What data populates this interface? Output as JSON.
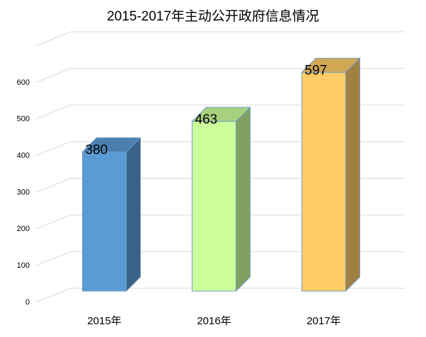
{
  "chart_data": {
    "type": "bar3d",
    "title": "2015-2017年主动公开政府信息情况",
    "categories": [
      "2015年",
      "2016年",
      "2017年"
    ],
    "values": [
      380,
      463,
      597
    ],
    "colors": [
      "#5b9bd5",
      "#ccff99",
      "#ffcc66"
    ],
    "ylim": [
      0,
      700
    ],
    "yticks": [
      0,
      100,
      200,
      300,
      400,
      500,
      600
    ],
    "grid": true
  }
}
